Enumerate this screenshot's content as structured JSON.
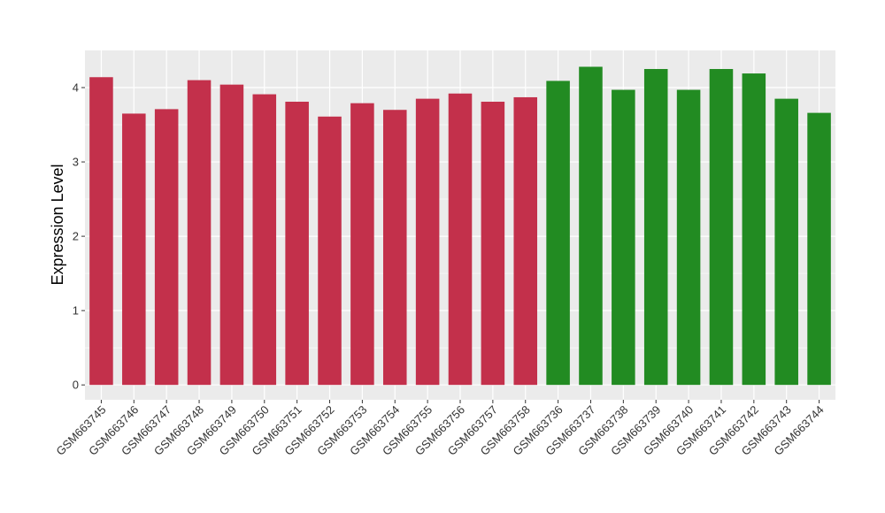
{
  "chart_data": {
    "type": "bar",
    "title": "",
    "xlabel": "",
    "ylabel": "Expression Level",
    "ylim": [
      -0.2,
      4.5
    ],
    "yticks": [
      0,
      1,
      2,
      3,
      4
    ],
    "ytick_labels": [
      "0",
      "1",
      "2",
      "3",
      "4"
    ],
    "grid": true,
    "categories": [
      "GSM663745",
      "GSM663746",
      "GSM663747",
      "GSM663748",
      "GSM663749",
      "GSM663750",
      "GSM663751",
      "GSM663752",
      "GSM663753",
      "GSM663754",
      "GSM663755",
      "GSM663756",
      "GSM663757",
      "GSM663758",
      "GSM663736",
      "GSM663737",
      "GSM663738",
      "GSM663739",
      "GSM663740",
      "GSM663741",
      "GSM663742",
      "GSM663743",
      "GSM663744"
    ],
    "values": [
      4.14,
      3.65,
      3.71,
      4.1,
      4.04,
      3.91,
      3.81,
      3.61,
      3.79,
      3.7,
      3.85,
      3.92,
      3.81,
      3.87,
      4.09,
      4.28,
      3.97,
      4.25,
      3.97,
      4.25,
      4.19,
      3.85,
      3.66
    ],
    "bar_colors": [
      "#C3304B",
      "#C3304B",
      "#C3304B",
      "#C3304B",
      "#C3304B",
      "#C3304B",
      "#C3304B",
      "#C3304B",
      "#C3304B",
      "#C3304B",
      "#C3304B",
      "#C3304B",
      "#C3304B",
      "#C3304B",
      "#228B22",
      "#228B22",
      "#228B22",
      "#228B22",
      "#228B22",
      "#228B22",
      "#228B22",
      "#228B22",
      "#228B22"
    ],
    "panel_background": "#EBEBEB",
    "grid_color": "#FFFFFF"
  }
}
